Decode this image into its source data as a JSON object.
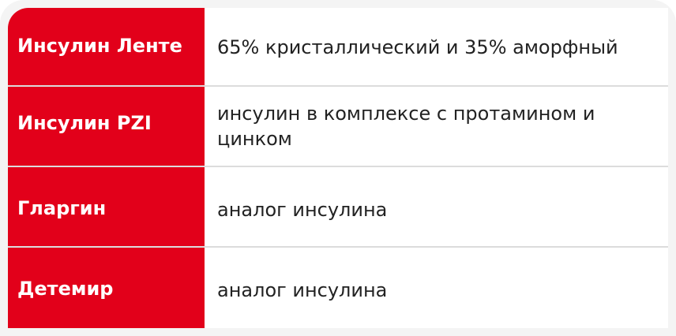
{
  "colors": {
    "accent": "#e2001a",
    "background": "#f4f4f4",
    "divider": "#dcdcdc"
  },
  "rows": [
    {
      "name": "Инсулин Ленте",
      "description": "65% кристаллический и 35% аморфный"
    },
    {
      "name": "Инсулин PZI",
      "description": "инсулин в комплексе с протамином и цинком"
    },
    {
      "name": "Гларгин",
      "description": "аналог инсулина"
    },
    {
      "name": "Детемир",
      "description": "аналог инсулина"
    }
  ]
}
